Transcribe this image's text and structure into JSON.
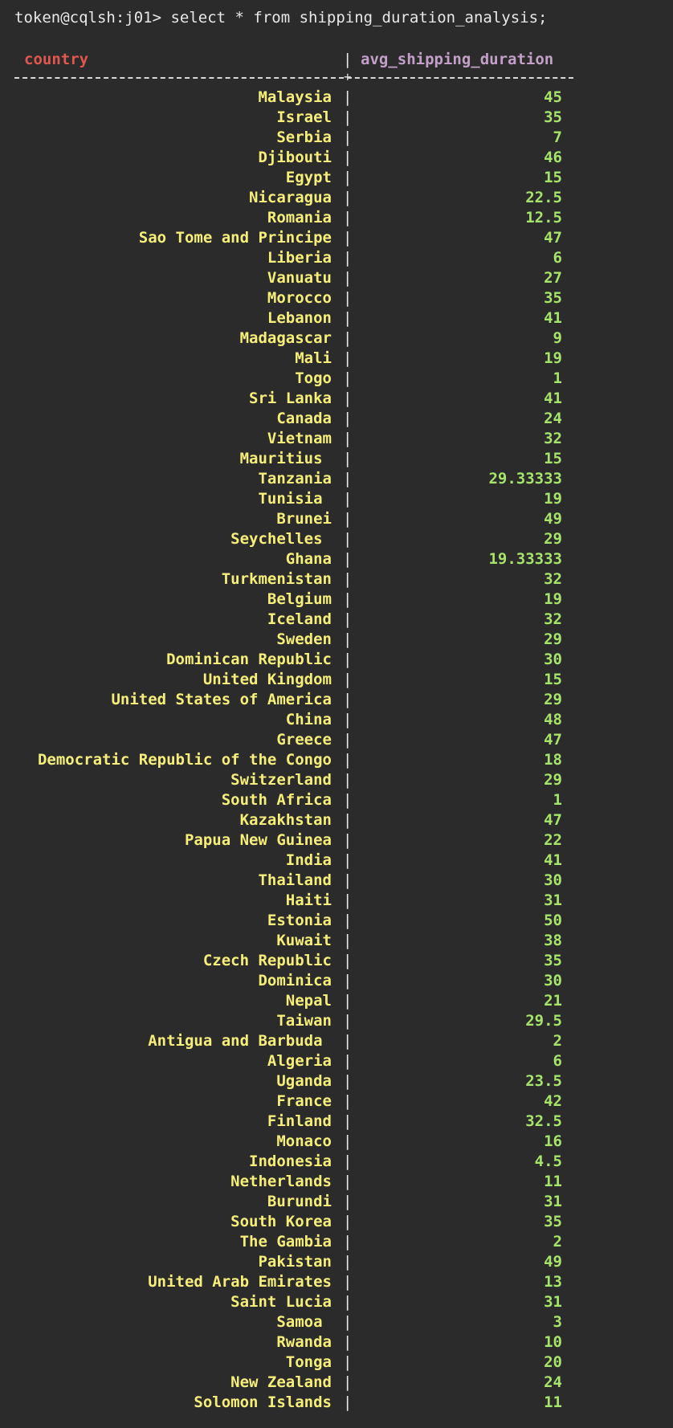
{
  "terminal": {
    "prompt": "token@cqlsh:j01> select * from shipping_duration_analysis;",
    "colors": {
      "background": "#2b2b2b",
      "column_header_country": "#e0584d",
      "column_header_value": "#c3a0c8",
      "country_text": "#f5ee7a",
      "value_text": "#a6e36b"
    }
  },
  "table": {
    "columns": [
      "country",
      "avg_shipping_duration"
    ],
    "rows": [
      {
        "country": "Malaysia",
        "value": "45"
      },
      {
        "country": "Israel",
        "value": "35"
      },
      {
        "country": "Serbia",
        "value": "7"
      },
      {
        "country": "Djibouti",
        "value": "46"
      },
      {
        "country": "Egypt",
        "value": "15"
      },
      {
        "country": "Nicaragua",
        "value": "22.5"
      },
      {
        "country": "Romania",
        "value": "12.5"
      },
      {
        "country": "Sao Tome and Principe",
        "value": "47"
      },
      {
        "country": "Liberia",
        "value": "6"
      },
      {
        "country": "Vanuatu",
        "value": "27"
      },
      {
        "country": "Morocco",
        "value": "35"
      },
      {
        "country": "Lebanon",
        "value": "41"
      },
      {
        "country": "Madagascar",
        "value": "9"
      },
      {
        "country": "Mali",
        "value": "19"
      },
      {
        "country": "Togo",
        "value": "1"
      },
      {
        "country": "Sri Lanka",
        "value": "41"
      },
      {
        "country": "Canada",
        "value": "24"
      },
      {
        "country": "Vietnam",
        "value": "32"
      },
      {
        "country": "Mauritius ",
        "value": "15"
      },
      {
        "country": "Tanzania",
        "value": "29.33333"
      },
      {
        "country": "Tunisia ",
        "value": "19"
      },
      {
        "country": "Brunei",
        "value": "49"
      },
      {
        "country": "Seychelles ",
        "value": "29"
      },
      {
        "country": "Ghana",
        "value": "19.33333"
      },
      {
        "country": "Turkmenistan",
        "value": "32"
      },
      {
        "country": "Belgium",
        "value": "19"
      },
      {
        "country": "Iceland",
        "value": "32"
      },
      {
        "country": "Sweden",
        "value": "29"
      },
      {
        "country": "Dominican Republic",
        "value": "30"
      },
      {
        "country": "United Kingdom",
        "value": "15"
      },
      {
        "country": "United States of America",
        "value": "29"
      },
      {
        "country": "China",
        "value": "48"
      },
      {
        "country": "Greece",
        "value": "47"
      },
      {
        "country": "Democratic Republic of the Congo",
        "value": "18"
      },
      {
        "country": "Switzerland",
        "value": "29"
      },
      {
        "country": "South Africa",
        "value": "1"
      },
      {
        "country": "Kazakhstan",
        "value": "47"
      },
      {
        "country": "Papua New Guinea",
        "value": "22"
      },
      {
        "country": "India",
        "value": "41"
      },
      {
        "country": "Thailand",
        "value": "30"
      },
      {
        "country": "Haiti",
        "value": "31"
      },
      {
        "country": "Estonia",
        "value": "50"
      },
      {
        "country": "Kuwait",
        "value": "38"
      },
      {
        "country": "Czech Republic",
        "value": "35"
      },
      {
        "country": "Dominica",
        "value": "30"
      },
      {
        "country": "Nepal",
        "value": "21"
      },
      {
        "country": "Taiwan",
        "value": "29.5"
      },
      {
        "country": "Antigua and Barbuda ",
        "value": "2"
      },
      {
        "country": "Algeria",
        "value": "6"
      },
      {
        "country": "Uganda",
        "value": "23.5"
      },
      {
        "country": "France",
        "value": "42"
      },
      {
        "country": "Finland",
        "value": "32.5"
      },
      {
        "country": "Monaco",
        "value": "16"
      },
      {
        "country": "Indonesia",
        "value": "4.5"
      },
      {
        "country": "Netherlands",
        "value": "11"
      },
      {
        "country": "Burundi",
        "value": "31"
      },
      {
        "country": "South Korea",
        "value": "35"
      },
      {
        "country": "The Gambia",
        "value": "2"
      },
      {
        "country": "Pakistan",
        "value": "49"
      },
      {
        "country": "United Arab Emirates",
        "value": "13"
      },
      {
        "country": "Saint Lucia",
        "value": "31"
      },
      {
        "country": "Samoa ",
        "value": "3"
      },
      {
        "country": "Rwanda",
        "value": "10"
      },
      {
        "country": "Tonga",
        "value": "20"
      },
      {
        "country": "New Zealand",
        "value": "24"
      },
      {
        "country": "Solomon Islands",
        "value": "11"
      }
    ]
  }
}
